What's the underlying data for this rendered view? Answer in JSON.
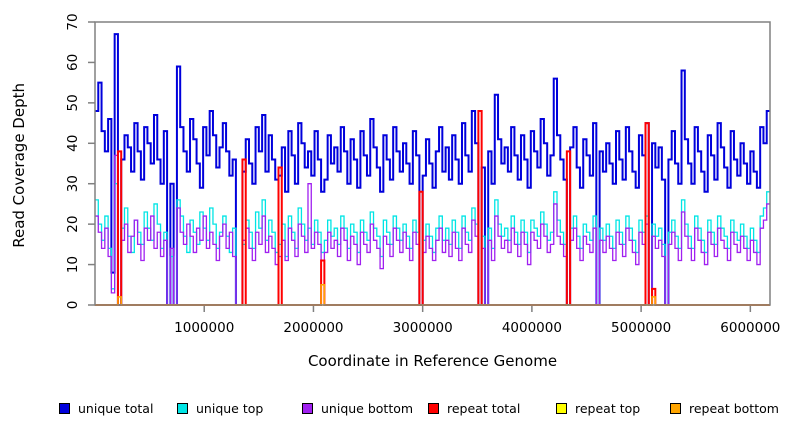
{
  "chart_data": {
    "type": "line",
    "subtype": "step",
    "title": "",
    "xlabel": "Coordinate in Reference Genome",
    "ylabel": "Read Coverage Depth",
    "xlim": [
      0,
      6180000
    ],
    "ylim": [
      0,
      70
    ],
    "x_step": 30000,
    "n_points": 206,
    "grid": false,
    "legend_position": "bottom",
    "box_color": "#808080",
    "x_ticks": [
      1000000,
      2000000,
      3000000,
      4000000,
      5000000,
      6000000
    ],
    "x_tick_labels": [
      "1000000",
      "2000000",
      "3000000",
      "4000000",
      "5000000",
      "6000000"
    ],
    "y_ticks": [
      0,
      10,
      20,
      30,
      40,
      50,
      60,
      70
    ],
    "y_tick_labels": [
      "0",
      "10",
      "20",
      "30",
      "40",
      "50",
      "60",
      "70"
    ],
    "series": [
      {
        "name": "unique total",
        "color": "#0000DC",
        "width": 2,
        "values": [
          48,
          55,
          43,
          38,
          46,
          8,
          67,
          0,
          36,
          42,
          39,
          33,
          45,
          38,
          31,
          44,
          40,
          35,
          47,
          36,
          30,
          43,
          0,
          30,
          0,
          59,
          44,
          38,
          33,
          46,
          41,
          35,
          29,
          44,
          37,
          48,
          42,
          34,
          39,
          45,
          38,
          32,
          36,
          0,
          0,
          33,
          41,
          35,
          30,
          44,
          38,
          47,
          33,
          42,
          36,
          31,
          32,
          39,
          28,
          43,
          37,
          30,
          45,
          40,
          34,
          38,
          32,
          43,
          36,
          28,
          31,
          42,
          35,
          39,
          33,
          44,
          38,
          30,
          41,
          36,
          29,
          43,
          37,
          32,
          46,
          39,
          34,
          28,
          42,
          36,
          31,
          44,
          38,
          33,
          40,
          35,
          30,
          43,
          37,
          0,
          32,
          41,
          35,
          29,
          38,
          44,
          33,
          39,
          31,
          42,
          36,
          30,
          45,
          37,
          33,
          48,
          40,
          0,
          34,
          0,
          38,
          30,
          52,
          41,
          35,
          39,
          33,
          44,
          37,
          31,
          42,
          36,
          29,
          43,
          38,
          34,
          46,
          40,
          32,
          37,
          56,
          42,
          36,
          31,
          0,
          39,
          44,
          34,
          29,
          41,
          37,
          32,
          45,
          0,
          38,
          33,
          40,
          35,
          30,
          43,
          36,
          31,
          44,
          38,
          33,
          29,
          42,
          37,
          45,
          0,
          40,
          34,
          39,
          31,
          0,
          36,
          43,
          35,
          30,
          58,
          41,
          35,
          30,
          44,
          38,
          33,
          28,
          42,
          37,
          31,
          45,
          39,
          34,
          29,
          43,
          36,
          32,
          40,
          35,
          30,
          38,
          33,
          29,
          44,
          40,
          48
        ]
      },
      {
        "name": "unique top",
        "color": "#00E5E5",
        "width": 1.3,
        "values": [
          26,
          20,
          16,
          22,
          14,
          4,
          30,
          0,
          19,
          24,
          17,
          13,
          21,
          18,
          15,
          23,
          19,
          16,
          25,
          20,
          14,
          18,
          0,
          12,
          0,
          26,
          22,
          17,
          13,
          21,
          18,
          15,
          23,
          19,
          16,
          24,
          20,
          14,
          18,
          22,
          17,
          13,
          19,
          0,
          0,
          15,
          21,
          18,
          14,
          23,
          19,
          26,
          16,
          21,
          18,
          13,
          15,
          20,
          12,
          22,
          18,
          14,
          24,
          20,
          16,
          19,
          15,
          21,
          18,
          13,
          16,
          21,
          17,
          19,
          15,
          22,
          19,
          14,
          20,
          18,
          13,
          21,
          18,
          16,
          23,
          19,
          17,
          12,
          21,
          18,
          15,
          22,
          19,
          16,
          20,
          17,
          14,
          21,
          18,
          0,
          16,
          20,
          17,
          13,
          19,
          22,
          16,
          19,
          15,
          21,
          18,
          14,
          22,
          18,
          16,
          24,
          20,
          0,
          17,
          0,
          19,
          14,
          26,
          20,
          17,
          19,
          16,
          22,
          18,
          15,
          21,
          18,
          13,
          21,
          19,
          17,
          23,
          20,
          16,
          18,
          28,
          21,
          18,
          15,
          0,
          19,
          22,
          17,
          14,
          20,
          18,
          16,
          22,
          0,
          19,
          16,
          20,
          17,
          14,
          21,
          18,
          15,
          22,
          19,
          16,
          13,
          21,
          18,
          22,
          0,
          20,
          17,
          19,
          15,
          0,
          18,
          21,
          17,
          14,
          26,
          20,
          17,
          14,
          22,
          19,
          16,
          13,
          21,
          18,
          15,
          22,
          19,
          17,
          14,
          21,
          18,
          16,
          20,
          17,
          14,
          19,
          16,
          13,
          22,
          24,
          28
        ]
      },
      {
        "name": "unique bottom",
        "color": "#A020F0",
        "width": 1.3,
        "values": [
          22,
          18,
          14,
          19,
          12,
          3,
          37,
          0,
          16,
          20,
          13,
          17,
          21,
          15,
          11,
          19,
          16,
          22,
          14,
          18,
          12,
          16,
          0,
          14,
          0,
          24,
          18,
          15,
          20,
          17,
          13,
          19,
          16,
          22,
          14,
          18,
          15,
          11,
          17,
          20,
          14,
          18,
          12,
          0,
          0,
          16,
          19,
          14,
          11,
          18,
          15,
          22,
          13,
          17,
          14,
          10,
          12,
          16,
          11,
          19,
          16,
          12,
          20,
          17,
          13,
          30,
          14,
          18,
          15,
          11,
          13,
          18,
          14,
          16,
          12,
          19,
          16,
          11,
          17,
          15,
          10,
          18,
          15,
          13,
          20,
          16,
          14,
          9,
          17,
          15,
          12,
          19,
          16,
          13,
          18,
          14,
          11,
          18,
          15,
          0,
          13,
          17,
          14,
          11,
          16,
          19,
          13,
          16,
          12,
          18,
          14,
          11,
          19,
          15,
          13,
          21,
          17,
          0,
          14,
          0,
          16,
          11,
          22,
          17,
          14,
          16,
          13,
          19,
          15,
          12,
          18,
          15,
          10,
          18,
          16,
          14,
          20,
          17,
          13,
          15,
          25,
          17,
          15,
          12,
          0,
          16,
          19,
          14,
          11,
          17,
          15,
          13,
          19,
          0,
          16,
          13,
          17,
          14,
          11,
          18,
          15,
          12,
          19,
          16,
          13,
          10,
          18,
          15,
          20,
          0,
          17,
          14,
          16,
          12,
          0,
          15,
          18,
          14,
          11,
          23,
          17,
          14,
          11,
          19,
          16,
          13,
          10,
          18,
          15,
          12,
          19,
          16,
          14,
          11,
          18,
          15,
          13,
          17,
          14,
          11,
          16,
          13,
          10,
          19,
          21,
          25
        ]
      },
      {
        "name": "repeat total",
        "color": "#FF0000",
        "width": 2,
        "base": 0,
        "spikes": {
          "7": 38,
          "45": 36,
          "56": 34,
          "69": 11,
          "99": 28,
          "117": 48,
          "144": 38,
          "168": 45,
          "170": 4
        }
      },
      {
        "name": "repeat top",
        "color": "#FFFF00",
        "width": 1.2,
        "base": 0,
        "spikes": {}
      },
      {
        "name": "repeat bottom",
        "color": "#FFA500",
        "width": 1.5,
        "base": 0,
        "spikes": {
          "7": 2,
          "69": 5,
          "170": 2
        }
      }
    ]
  }
}
